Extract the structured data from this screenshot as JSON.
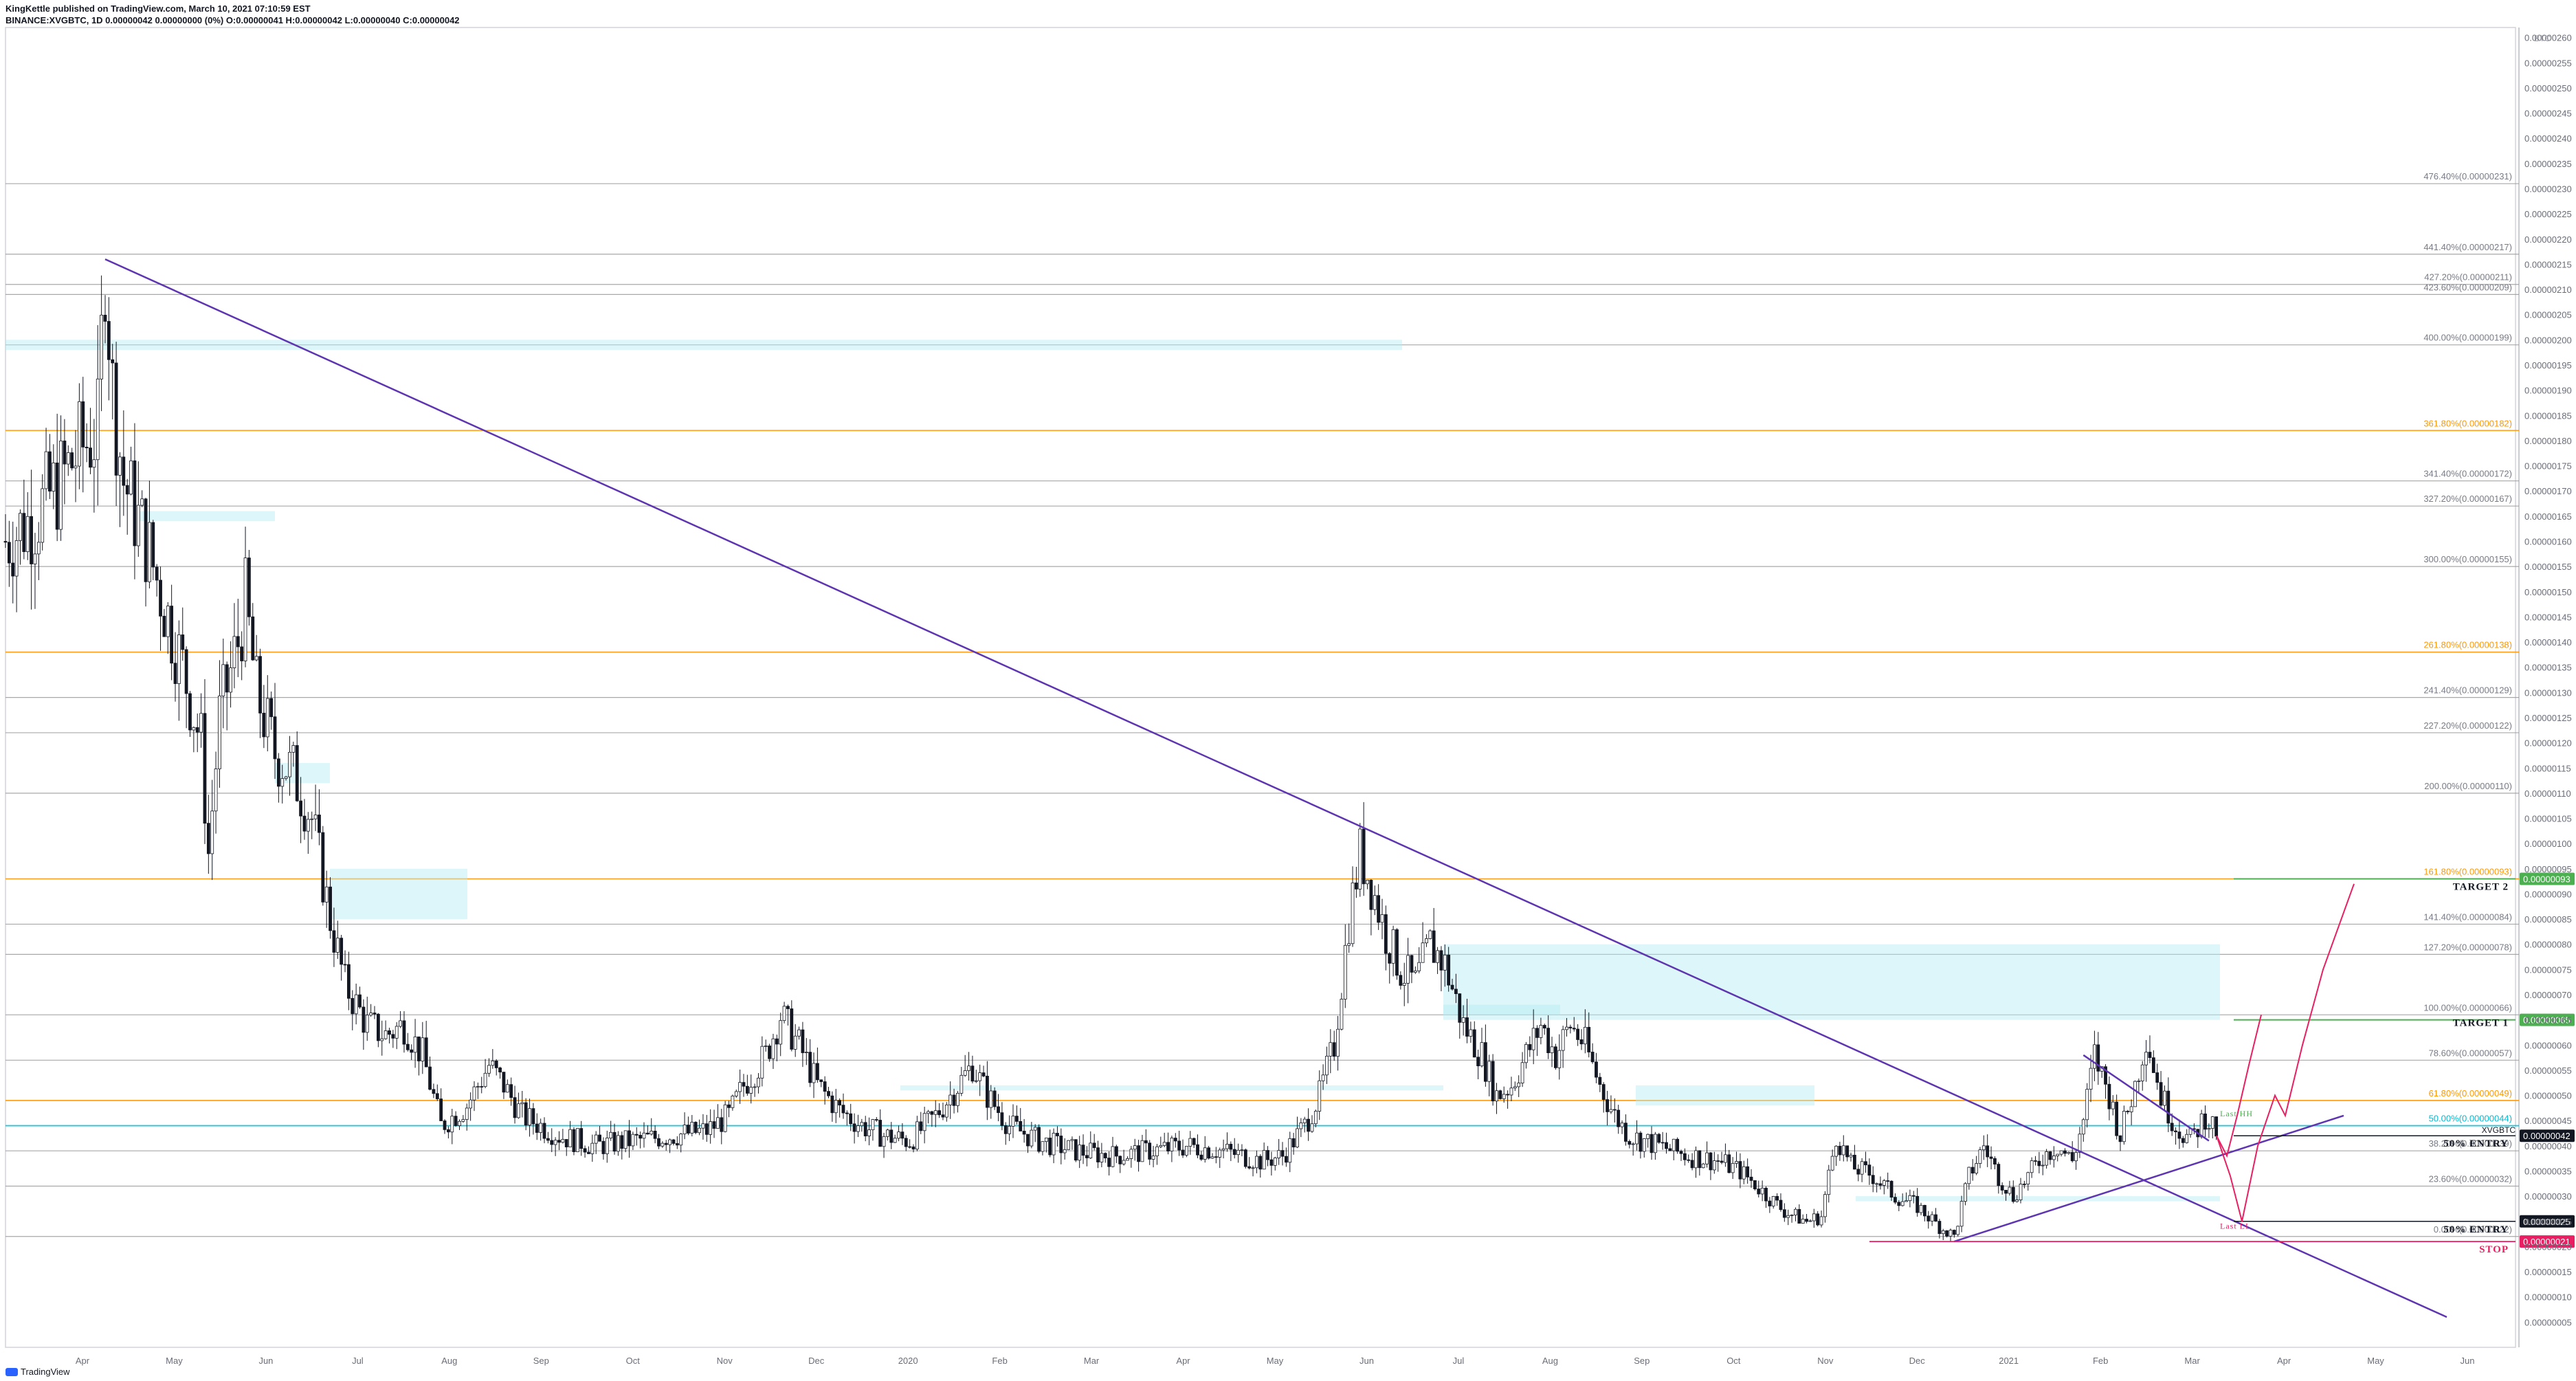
{
  "header": {
    "line1": "KingKettle published on TradingView.com, March 10, 2021 07:10:59 EST",
    "line2": "BINANCE:XVGBTC, 1D  0.00000042 0.00000000 (0%) O:0.00000041 H:0.00000042 L:0.00000040 C:0.00000042"
  },
  "footer": {
    "brand": "TradingView"
  },
  "chart_data": {
    "type": "candlestick",
    "symbol": "BINANCE:XVGBTC",
    "interval": "1D",
    "currency_label": "BTC",
    "ylim": [
      0.0,
      2.62e-06
    ],
    "y_ticks": [
      "0.00000260",
      "0.00000255",
      "0.00000250",
      "0.00000245",
      "0.00000240",
      "0.00000235",
      "0.00000230",
      "0.00000225",
      "0.00000220",
      "0.00000215",
      "0.00000210",
      "0.00000205",
      "0.00000200",
      "0.00000195",
      "0.00000190",
      "0.00000185",
      "0.00000180",
      "0.00000175",
      "0.00000170",
      "0.00000165",
      "0.00000160",
      "0.00000155",
      "0.00000150",
      "0.00000145",
      "0.00000140",
      "0.00000135",
      "0.00000130",
      "0.00000125",
      "0.00000120",
      "0.00000115",
      "0.00000110",
      "0.00000105",
      "0.00000100",
      "0.00000095",
      "0.00000090",
      "0.00000085",
      "0.00000080",
      "0.00000075",
      "0.00000070",
      "0.00000065",
      "0.00000060",
      "0.00000055",
      "0.00000050",
      "0.00000045",
      "0.00000040",
      "0.00000035",
      "0.00000030",
      "0.00000025",
      "0.00000020",
      "0.00000015",
      "0.00000010",
      "0.00000005"
    ],
    "x_ticks": [
      "Apr",
      "May",
      "Jun",
      "Jul",
      "Aug",
      "Sep",
      "Oct",
      "Nov",
      "Dec",
      "2020",
      "Feb",
      "Mar",
      "Apr",
      "May",
      "Jun",
      "Jul",
      "Aug",
      "Sep",
      "Oct",
      "Nov",
      "Dec",
      "2021",
      "Feb",
      "Mar",
      "Apr",
      "May",
      "Jun"
    ],
    "fib_levels": [
      {
        "label": "476.40%(0.00000231)",
        "value": 2.31e-06,
        "color": "#9a9a9a"
      },
      {
        "label": "441.40%(0.00000217)",
        "value": 2.17e-06,
        "color": "#9a9a9a"
      },
      {
        "label": "427.20%(0.00000211)",
        "value": 2.11e-06,
        "color": "#9a9a9a"
      },
      {
        "label": "423.60%(0.00000209)",
        "value": 2.09e-06,
        "color": "#9a9a9a"
      },
      {
        "label": "400.00%(0.00000199)",
        "value": 1.99e-06,
        "color": "#9a9a9a"
      },
      {
        "label": "361.80%(0.00000182)",
        "value": 1.82e-06,
        "color": "#ff9800"
      },
      {
        "label": "341.40%(0.00000172)",
        "value": 1.72e-06,
        "color": "#9a9a9a"
      },
      {
        "label": "327.20%(0.00000167)",
        "value": 1.67e-06,
        "color": "#9a9a9a"
      },
      {
        "label": "300.00%(0.00000155)",
        "value": 1.55e-06,
        "color": "#9a9a9a"
      },
      {
        "label": "261.80%(0.00000138)",
        "value": 1.38e-06,
        "color": "#ff9800"
      },
      {
        "label": "241.40%(0.00000129)",
        "value": 1.29e-06,
        "color": "#9a9a9a"
      },
      {
        "label": "227.20%(0.00000122)",
        "value": 1.22e-06,
        "color": "#9a9a9a"
      },
      {
        "label": "200.00%(0.00000110)",
        "value": 1.1e-06,
        "color": "#9a9a9a"
      },
      {
        "label": "161.80%(0.00000093)",
        "value": 9.3e-07,
        "color": "#ff9800"
      },
      {
        "label": "141.40%(0.00000084)",
        "value": 8.4e-07,
        "color": "#9a9a9a"
      },
      {
        "label": "127.20%(0.00000078)",
        "value": 7.8e-07,
        "color": "#9a9a9a"
      },
      {
        "label": "100.00%(0.00000066)",
        "value": 6.6e-07,
        "color": "#9a9a9a"
      },
      {
        "label": "78.60%(0.00000057)",
        "value": 5.7e-07,
        "color": "#9a9a9a"
      },
      {
        "label": "61.80%(0.00000049)",
        "value": 4.9e-07,
        "color": "#ff9800"
      },
      {
        "label": "50.00%(0.00000044)",
        "value": 4.4e-07,
        "color": "#00bcd4"
      },
      {
        "label": "38.20%(0.00000039)",
        "value": 3.9e-07,
        "color": "#9a9a9a"
      },
      {
        "label": "23.60%(0.00000032)",
        "value": 3.2e-07,
        "color": "#9a9a9a"
      },
      {
        "label": "0.00%(0.00000022)",
        "value": 2.2e-07,
        "color": "#9a9a9a"
      }
    ],
    "annotations": [
      {
        "text": "TARGET 2",
        "value": 9.3e-07,
        "color": "#131722"
      },
      {
        "text": "TARGET 1",
        "value": 6.6e-07,
        "color": "#131722"
      },
      {
        "text": "50% ENTRY",
        "value": 4.2e-07,
        "color": "#131722"
      },
      {
        "text": "50% ENTRY",
        "value": 2.5e-07,
        "color": "#131722"
      },
      {
        "text": "STOP",
        "value": 2.1e-07,
        "color": "#e91e63"
      },
      {
        "text": "Last HH",
        "value": 4.5e-07,
        "color": "#4caf50"
      },
      {
        "text": "Last LL",
        "value": 2.3e-07,
        "color": "#e91e63"
      }
    ],
    "price_tags": [
      {
        "text": "0.00000093",
        "value": 9.3e-07,
        "color": "#4caf50"
      },
      {
        "text": "0.00000065",
        "value": 6.5e-07,
        "color": "#4caf50"
      },
      {
        "text": "XVGBTC",
        "value": 4.2e-07,
        "color": "#131722"
      },
      {
        "text": "0.00000042",
        "value": 4.2e-07,
        "color": "#131722"
      },
      {
        "text": "0.00000025",
        "value": 2.5e-07,
        "color": "#131722"
      },
      {
        "text": "0.00000021",
        "value": 2.1e-07,
        "color": "#e91e63"
      }
    ],
    "price_path": [
      [
        0,
        1.6e-06
      ],
      [
        8,
        1.65e-06
      ],
      [
        15,
        1.72e-06
      ],
      [
        20,
        1.78e-06
      ],
      [
        25,
        1.82e-06
      ],
      [
        27,
        2.16e-06
      ],
      [
        29,
        1.9e-06
      ],
      [
        32,
        1.72e-06
      ],
      [
        38,
        1.6e-06
      ],
      [
        42,
        1.5e-06
      ],
      [
        48,
        1.35e-06
      ],
      [
        53,
        1.2e-06
      ],
      [
        55,
        9.8e-07
      ],
      [
        58,
        1.25e-06
      ],
      [
        63,
        1.4e-06
      ],
      [
        65,
        1.48e-06
      ],
      [
        68,
        1.3e-06
      ],
      [
        73,
        1.18e-06
      ],
      [
        78,
        1.14e-06
      ],
      [
        83,
        1.05e-06
      ],
      [
        88,
        8.5e-07
      ],
      [
        92,
        7.2e-07
      ],
      [
        98,
        6.4e-07
      ],
      [
        103,
        6.2e-07
      ],
      [
        108,
        6.4e-07
      ],
      [
        113,
        5.8e-07
      ],
      [
        118,
        4.4e-07
      ],
      [
        125,
        4.8e-07
      ],
      [
        131,
        5.6e-07
      ],
      [
        135,
        5.2e-07
      ],
      [
        140,
        4.6e-07
      ],
      [
        150,
        4.2e-07
      ],
      [
        160,
        4e-07
      ],
      [
        170,
        4.1e-07
      ],
      [
        180,
        4.2e-07
      ],
      [
        190,
        4.3e-07
      ],
      [
        196,
        4.6e-07
      ],
      [
        200,
        5.2e-07
      ],
      [
        206,
        5.8e-07
      ],
      [
        210,
        6.6e-07
      ],
      [
        215,
        6e-07
      ],
      [
        220,
        5.2e-07
      ],
      [
        226,
        4.7e-07
      ],
      [
        232,
        4.4e-07
      ],
      [
        238,
        4.2e-07
      ],
      [
        245,
        4.1e-07
      ],
      [
        252,
        4.6e-07
      ],
      [
        258,
        5.2e-07
      ],
      [
        262,
        5.6e-07
      ],
      [
        266,
        5e-07
      ],
      [
        272,
        4.4e-07
      ],
      [
        280,
        4.1e-07
      ],
      [
        290,
        3.9e-07
      ],
      [
        300,
        3.8e-07
      ],
      [
        310,
        3.9e-07
      ],
      [
        320,
        4e-07
      ],
      [
        330,
        3.9e-07
      ],
      [
        340,
        3.7e-07
      ],
      [
        346,
        3.8e-07
      ],
      [
        352,
        4.4e-07
      ],
      [
        356,
        5e-07
      ],
      [
        360,
        6e-07
      ],
      [
        364,
        8.5e-07
      ],
      [
        367,
        9.8e-07
      ],
      [
        370,
        9.2e-07
      ],
      [
        374,
        8.2e-07
      ],
      [
        378,
        7.5e-07
      ],
      [
        382,
        7.2e-07
      ],
      [
        386,
        8e-07
      ],
      [
        390,
        7.6e-07
      ],
      [
        395,
        6.4e-07
      ],
      [
        400,
        5.8e-07
      ],
      [
        404,
        5e-07
      ],
      [
        408,
        5.2e-07
      ],
      [
        412,
        5.8e-07
      ],
      [
        416,
        6.4e-07
      ],
      [
        420,
        5.8e-07
      ],
      [
        424,
        6.4e-07
      ],
      [
        428,
        6e-07
      ],
      [
        432,
        5.2e-07
      ],
      [
        436,
        4.6e-07
      ],
      [
        440,
        4.2e-07
      ],
      [
        448,
        4e-07
      ],
      [
        456,
        3.8e-07
      ],
      [
        464,
        3.7e-07
      ],
      [
        470,
        3.5e-07
      ],
      [
        476,
        3.1e-07
      ],
      [
        482,
        2.7e-07
      ],
      [
        488,
        2.5e-07
      ],
      [
        492,
        2.6e-07
      ],
      [
        496,
        4.2e-07
      ],
      [
        500,
        3.6e-07
      ],
      [
        506,
        3.4e-07
      ],
      [
        512,
        3e-07
      ],
      [
        518,
        2.8e-07
      ],
      [
        524,
        2.4e-07
      ],
      [
        528,
        2.2e-07
      ],
      [
        532,
        3.4e-07
      ],
      [
        536,
        4e-07
      ],
      [
        540,
        3.4e-07
      ],
      [
        544,
        3e-07
      ],
      [
        548,
        3.4e-07
      ],
      [
        552,
        3.8e-07
      ],
      [
        556,
        4e-07
      ],
      [
        560,
        3.7e-07
      ],
      [
        563,
        4.5e-07
      ],
      [
        566,
        5.8e-07
      ],
      [
        570,
        5e-07
      ],
      [
        573,
        4.2e-07
      ],
      [
        577,
        5.2e-07
      ],
      [
        580,
        6.2e-07
      ],
      [
        584,
        5e-07
      ],
      [
        588,
        4.4e-07
      ],
      [
        592,
        4.1e-07
      ],
      [
        596,
        4.6e-07
      ],
      [
        600,
        4.2e-07
      ]
    ]
  }
}
